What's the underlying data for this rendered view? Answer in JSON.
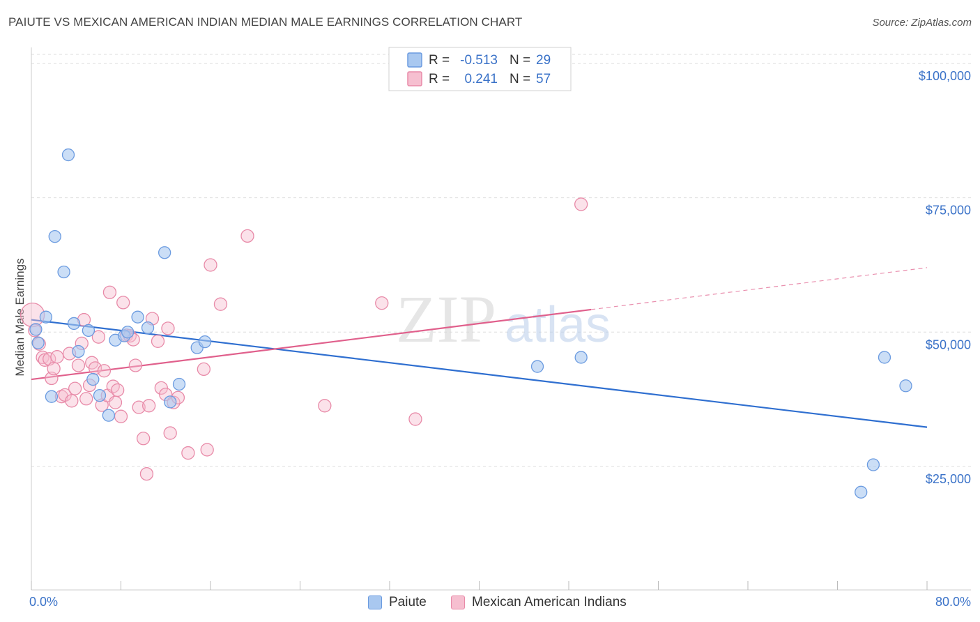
{
  "header": {
    "title": "PAIUTE VS MEXICAN AMERICAN INDIAN MEDIAN MALE EARNINGS CORRELATION CHART",
    "source": "Source: ZipAtlas.com"
  },
  "watermark": {
    "zip": "ZIP",
    "atlas": "atlas"
  },
  "colors": {
    "blue_fill": "#a9c8f0",
    "blue_stroke": "#6b9be0",
    "blue_line": "#2f6fd0",
    "pink_fill": "#f6bfd0",
    "pink_stroke": "#e88aa8",
    "pink_line": "#e0608c",
    "tick_text": "#3a72c8",
    "grid": "#dddddd"
  },
  "legend": {
    "rows": [
      {
        "r_label": "R =",
        "r_value": "-0.513",
        "n_label": "N =",
        "n_value": "29"
      },
      {
        "r_label": "R =",
        "r_value": "0.241",
        "n_label": "N =",
        "n_value": "57"
      }
    ]
  },
  "bottom_legend": {
    "items": [
      "Paiute",
      "Mexican American Indians"
    ]
  },
  "chart_data": {
    "type": "scatter",
    "title": "PAIUTE VS MEXICAN AMERICAN INDIAN MEDIAN MALE EARNINGS CORRELATION CHART",
    "xlabel": "",
    "ylabel": "Median Male Earnings",
    "xlim": [
      0,
      80
    ],
    "ylim": [
      2000,
      103000
    ],
    "x_tick_labels": [
      "0.0%",
      "80.0%"
    ],
    "y_ticks": [
      25000,
      50000,
      75000,
      100000
    ],
    "y_tick_labels": [
      "$25,000",
      "$50,000",
      "$75,000",
      "$100,000"
    ],
    "grid": true,
    "series": [
      {
        "name": "Paiute",
        "R": -0.513,
        "N": 29,
        "points": [
          [
            0.4,
            50500
          ],
          [
            0.6,
            48000
          ],
          [
            1.3,
            52800
          ],
          [
            1.8,
            38000
          ],
          [
            2.1,
            67800
          ],
          [
            2.9,
            61200
          ],
          [
            3.3,
            83000
          ],
          [
            3.8,
            51600
          ],
          [
            4.2,
            46400
          ],
          [
            5.1,
            50300
          ],
          [
            5.5,
            41200
          ],
          [
            6.1,
            38200
          ],
          [
            6.9,
            34500
          ],
          [
            7.5,
            48500
          ],
          [
            8.3,
            49300
          ],
          [
            8.6,
            50000
          ],
          [
            9.5,
            52800
          ],
          [
            10.4,
            50800
          ],
          [
            11.9,
            64800
          ],
          [
            12.4,
            37000
          ],
          [
            13.2,
            40300
          ],
          [
            14.8,
            47100
          ],
          [
            15.5,
            48200
          ],
          [
            45.2,
            43600
          ],
          [
            49.1,
            45300
          ],
          [
            74.1,
            20200
          ],
          [
            75.2,
            25300
          ],
          [
            76.2,
            45300
          ],
          [
            78.1,
            40000
          ]
        ],
        "trend": {
          "x": [
            0,
            80
          ],
          "y": [
            52300,
            32300
          ]
        }
      },
      {
        "name": "Mexican American Indians",
        "R": 0.241,
        "N": 57,
        "points": [
          [
            0.1,
            53200
          ],
          [
            0.3,
            50300
          ],
          [
            0.7,
            47800
          ],
          [
            1.0,
            45300
          ],
          [
            1.2,
            44800
          ],
          [
            1.6,
            45000
          ],
          [
            1.8,
            41400
          ],
          [
            2.0,
            43200
          ],
          [
            2.3,
            45400
          ],
          [
            2.7,
            38000
          ],
          [
            3.0,
            38300
          ],
          [
            3.4,
            46000
          ],
          [
            3.6,
            37200
          ],
          [
            3.9,
            39500
          ],
          [
            4.2,
            43800
          ],
          [
            4.5,
            47900
          ],
          [
            4.7,
            52300
          ],
          [
            4.9,
            37600
          ],
          [
            5.2,
            40100
          ],
          [
            5.4,
            44300
          ],
          [
            5.7,
            43300
          ],
          [
            6.0,
            49100
          ],
          [
            6.3,
            36400
          ],
          [
            6.5,
            42800
          ],
          [
            6.8,
            38200
          ],
          [
            7.0,
            57400
          ],
          [
            7.3,
            39900
          ],
          [
            7.5,
            36900
          ],
          [
            7.7,
            39200
          ],
          [
            8.0,
            34300
          ],
          [
            8.2,
            55500
          ],
          [
            8.5,
            49400
          ],
          [
            8.8,
            49300
          ],
          [
            9.1,
            48600
          ],
          [
            9.3,
            43800
          ],
          [
            9.6,
            36000
          ],
          [
            10.0,
            30200
          ],
          [
            10.3,
            23600
          ],
          [
            10.5,
            36300
          ],
          [
            10.8,
            52500
          ],
          [
            11.3,
            48300
          ],
          [
            11.6,
            39600
          ],
          [
            12.0,
            38400
          ],
          [
            12.2,
            50700
          ],
          [
            12.4,
            31200
          ],
          [
            12.7,
            36900
          ],
          [
            13.1,
            37800
          ],
          [
            14.0,
            27500
          ],
          [
            15.4,
            43100
          ],
          [
            15.7,
            28100
          ],
          [
            16.0,
            62500
          ],
          [
            16.9,
            55200
          ],
          [
            19.3,
            67900
          ],
          [
            26.2,
            36300
          ],
          [
            31.3,
            55400
          ],
          [
            34.3,
            33800
          ],
          [
            49.1,
            73800
          ]
        ],
        "trend": {
          "x": [
            0,
            50
          ],
          "y": [
            41200,
            54200
          ]
        },
        "trend_dashed": {
          "x": [
            50,
            80
          ],
          "y": [
            54200,
            62000
          ]
        }
      }
    ]
  }
}
